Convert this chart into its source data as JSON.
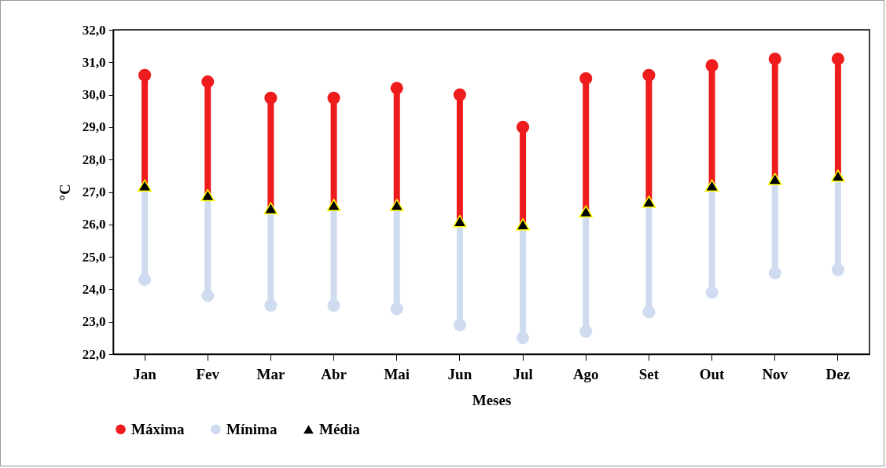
{
  "chart_data": {
    "type": "scatter",
    "xlabel": "Meses",
    "ylabel": "°C",
    "categories": [
      "Jan",
      "Fev",
      "Mar",
      "Abr",
      "Mai",
      "Jun",
      "Jul",
      "Ago",
      "Set",
      "Out",
      "Nov",
      "Dez"
    ],
    "series": [
      {
        "name": "Máxima",
        "color": "#ee1c1c",
        "marker": "circle",
        "values": [
          30.6,
          30.4,
          29.9,
          29.9,
          30.2,
          30.0,
          29.0,
          30.5,
          30.6,
          30.9,
          31.1,
          31.1
        ]
      },
      {
        "name": "Mínima",
        "color": "#cfdcef",
        "marker": "circle",
        "values": [
          24.3,
          23.8,
          23.5,
          23.5,
          23.4,
          22.9,
          22.5,
          22.7,
          23.3,
          23.9,
          24.5,
          24.6
        ]
      },
      {
        "name": "Média",
        "color": "#000000",
        "marker": "triangle",
        "values": [
          27.2,
          26.9,
          26.5,
          26.6,
          26.6,
          26.1,
          26.0,
          26.4,
          26.7,
          27.2,
          27.4,
          27.5
        ]
      }
    ],
    "ylim": [
      22,
      32
    ],
    "yticks": [
      {
        "value": 22,
        "label": "22,0"
      },
      {
        "value": 23,
        "label": "23,0"
      },
      {
        "value": 24,
        "label": "24,0"
      },
      {
        "value": 25,
        "label": "25,0"
      },
      {
        "value": 26,
        "label": "26,0"
      },
      {
        "value": 27,
        "label": "27,0"
      },
      {
        "value": 28,
        "label": "28,0"
      },
      {
        "value": 29,
        "label": "29,0"
      },
      {
        "value": 30,
        "label": "30,0"
      },
      {
        "value": 31,
        "label": "31,0"
      },
      {
        "value": 32,
        "label": "32,0"
      }
    ],
    "grid": false,
    "legend": "bottom"
  }
}
